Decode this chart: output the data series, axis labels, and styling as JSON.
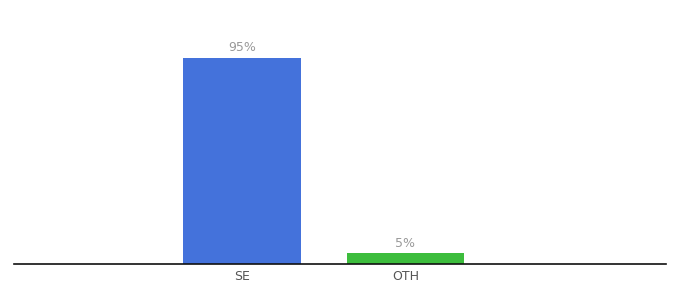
{
  "categories": [
    "SE",
    "OTH"
  ],
  "values": [
    95,
    5
  ],
  "bar_colors": [
    "#4472db",
    "#3dbd3d"
  ],
  "value_labels": [
    "95%",
    "5%"
  ],
  "background_color": "#ffffff",
  "ylim": [
    0,
    105
  ],
  "bar_width": 0.18,
  "label_fontsize": 9,
  "tick_fontsize": 9,
  "label_color": "#999999",
  "axis_color": "#555555",
  "x_positions": [
    0.35,
    0.6
  ],
  "xlim": [
    0.0,
    1.0
  ]
}
